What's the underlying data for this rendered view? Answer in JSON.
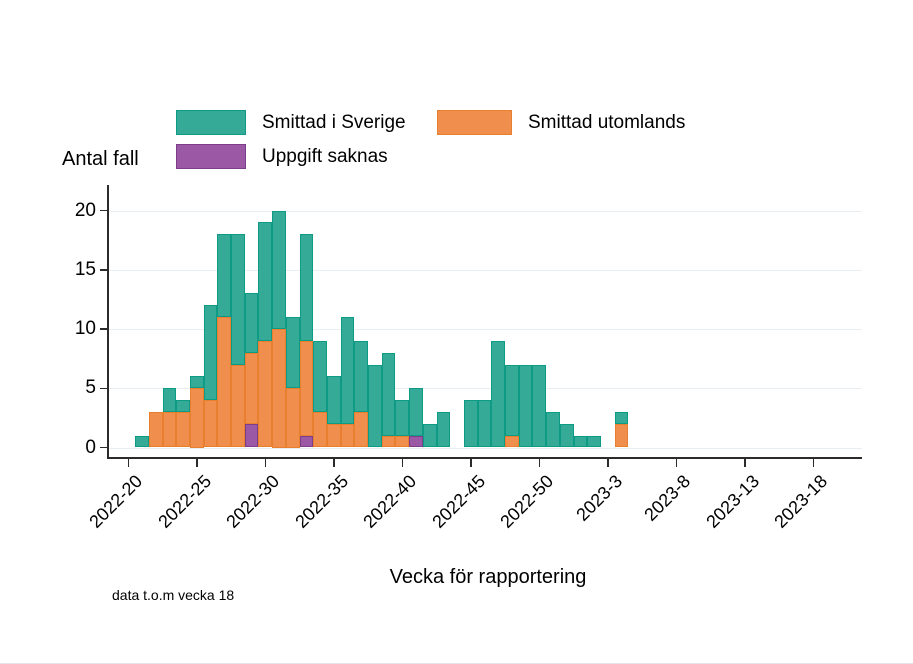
{
  "figure": {
    "ylabel_title": "Antal fall",
    "xlabel": "Vecka för rapportering",
    "note": "data t.o.m vecka 18"
  },
  "legend": {
    "position": "top",
    "items": [
      {
        "label": "Smittad i Sverige",
        "fill": "#35ab97",
        "stroke": "#0d9b85"
      },
      {
        "label": "Smittad utomlands",
        "fill": "#f08e4e",
        "stroke": "#e87f2e"
      },
      {
        "label": "Uppgift saknas",
        "fill": "#9b58a5",
        "stroke": "#7c3d8a"
      }
    ]
  },
  "chart_data": {
    "type": "bar",
    "stacked": true,
    "title": "Antal fall",
    "xlabel": "Vecka för rapportering",
    "ylabel": "Antal fall",
    "note": "data t.o.m vecka 18",
    "grid": "horizontal",
    "legend_position": "top",
    "ylim": [
      0,
      20
    ],
    "yticks": [
      0,
      5,
      10,
      15,
      20
    ],
    "xticks": [
      {
        "label": "2022-20",
        "week_offset": 0
      },
      {
        "label": "2022-25",
        "week_offset": 5
      },
      {
        "label": "2022-30",
        "week_offset": 10
      },
      {
        "label": "2022-35",
        "week_offset": 15
      },
      {
        "label": "2022-40",
        "week_offset": 20
      },
      {
        "label": "2022-45",
        "week_offset": 25
      },
      {
        "label": "2022-50",
        "week_offset": 30
      },
      {
        "label": "2023-3",
        "week_offset": 35
      },
      {
        "label": "2023-8",
        "week_offset": 40
      },
      {
        "label": "2023-13",
        "week_offset": 45
      },
      {
        "label": "2023-18",
        "week_offset": 50
      }
    ],
    "first_category_week_offset": 1,
    "categories": [
      "2022-21",
      "2022-22",
      "2022-23",
      "2022-24",
      "2022-25",
      "2022-26",
      "2022-27",
      "2022-28",
      "2022-29",
      "2022-30",
      "2022-31",
      "2022-32",
      "2022-33",
      "2022-34",
      "2022-35",
      "2022-36",
      "2022-37",
      "2022-38",
      "2022-39",
      "2022-40",
      "2022-41",
      "2022-42",
      "2022-43",
      "2022-44",
      "2022-45",
      "2022-46",
      "2022-47",
      "2022-48",
      "2022-49",
      "2022-50",
      "2022-51",
      "2022-52",
      "2023-1",
      "2023-2",
      "2023-3",
      "2023-4"
    ],
    "series": [
      {
        "name": "Uppgift saknas",
        "fill": "#9b58a5",
        "stroke": "#7c3d8a",
        "values": [
          0,
          0,
          0,
          0,
          0,
          0,
          0,
          0,
          2,
          0,
          0,
          0,
          1,
          0,
          0,
          0,
          0,
          0,
          0,
          0,
          1,
          0,
          0,
          0,
          0,
          0,
          0,
          0,
          0,
          0,
          0,
          0,
          0,
          0,
          0,
          0
        ]
      },
      {
        "name": "Smittad utomlands",
        "fill": "#f08e4e",
        "stroke": "#e87f2e",
        "values": [
          0,
          3,
          3,
          3,
          5,
          4,
          11,
          7,
          6,
          9,
          10,
          5,
          8,
          3,
          2,
          2,
          3,
          0,
          1,
          1,
          0,
          0,
          0,
          0,
          0,
          0,
          0,
          1,
          0,
          0,
          0,
          0,
          0,
          0,
          0,
          2
        ]
      },
      {
        "name": "Smittad i Sverige",
        "fill": "#35ab97",
        "stroke": "#0d9b85",
        "values": [
          1,
          0,
          2,
          1,
          1,
          8,
          7,
          11,
          5,
          10,
          10,
          6,
          9,
          6,
          4,
          9,
          6,
          7,
          7,
          3,
          4,
          2,
          3,
          0,
          4,
          4,
          9,
          6,
          7,
          7,
          3,
          2,
          1,
          1,
          0,
          1
        ]
      }
    ]
  }
}
